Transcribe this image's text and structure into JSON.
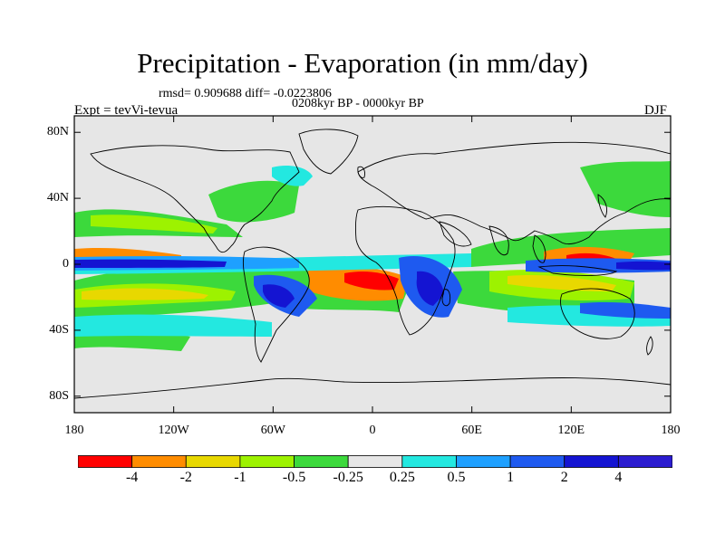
{
  "title": "Precipitation - Evaporation (in mm/day)",
  "stats": "rmsd= 0.909688 diff= -0.0223806",
  "period": "0208kyr BP - 0000kyr BP",
  "experiment": "Expt = tevVi-tevua",
  "season": "DJF",
  "map": {
    "projection": "cylindrical-equidistant",
    "lon_range": [
      -180,
      180
    ],
    "lat_range": [
      -90,
      90
    ],
    "background_color": "#e6e6e6",
    "y_ticks": [
      {
        "lat": 80,
        "label": "80N"
      },
      {
        "lat": 40,
        "label": "40N"
      },
      {
        "lat": 0,
        "label": "0"
      },
      {
        "lat": -40,
        "label": "40S"
      },
      {
        "lat": -80,
        "label": "80S"
      }
    ],
    "x_ticks": [
      {
        "lon": -180,
        "label": "180"
      },
      {
        "lon": -120,
        "label": "120W"
      },
      {
        "lon": -60,
        "label": "60W"
      },
      {
        "lon": 0,
        "label": "0"
      },
      {
        "lon": 60,
        "label": "60E"
      },
      {
        "lon": 120,
        "label": "120E"
      },
      {
        "lon": 180,
        "label": "180"
      }
    ]
  },
  "colorbar": {
    "colors": [
      "#ff0000",
      "#ff8c00",
      "#e8d800",
      "#9df200",
      "#3cd93c",
      "#e6e6e6",
      "#23e8e0",
      "#1ea0ff",
      "#1e5af0",
      "#1414d2",
      "#2b1cd0",
      "#8c28f0"
    ],
    "labels": [
      "-4",
      "-2",
      "-1",
      "-0.5",
      "-0.25",
      "0.25",
      "0.5",
      "1",
      "2",
      "4"
    ]
  },
  "legend_colors": {
    "c4": "#ff0000",
    "c2": "#ff8c00",
    "c1": "#e8d800",
    "c05": "#9df200",
    "c025": "#3cd93c",
    "p025": "#23e8e0",
    "p05": "#1ea0ff",
    "p1": "#1e5af0",
    "p2": "#1414d2",
    "p4": "#2b1cd0"
  }
}
